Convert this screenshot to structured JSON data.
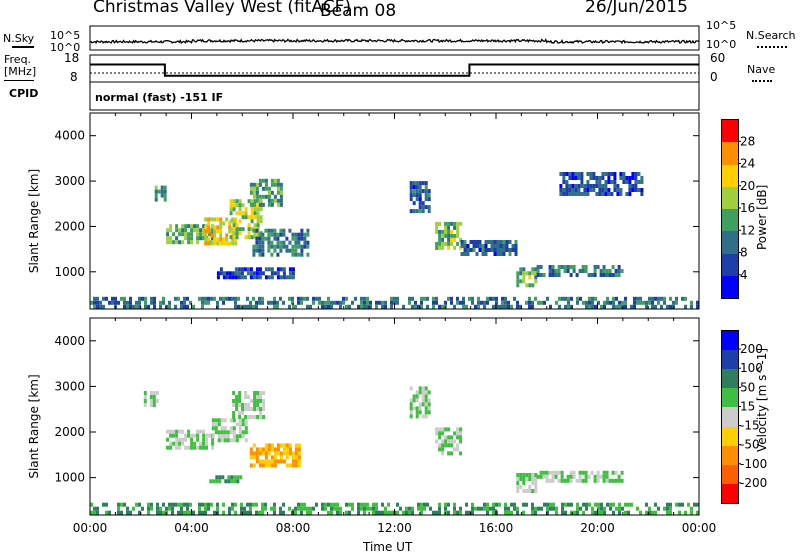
{
  "header": {
    "station": "Christmas Valley West (fitACF)",
    "beam": "Beam 08",
    "date": "26/Jun/2015"
  },
  "panel_labels": {
    "nsky": "N.Sky",
    "nsky_top": "10^5",
    "nsky_bottom": "10^0",
    "nsearch": "N.Search",
    "nsearch_top": "10^5",
    "nsearch_bottom": "10^0",
    "freq": "Freq.",
    "freq_unit": "[MHz]",
    "freq_top": "18",
    "freq_bottom": "8",
    "nave": "Nave",
    "nave_top": "60",
    "nave_bottom": "0",
    "cpid": "CPID",
    "cpid_text": "normal (fast) -151 IF"
  },
  "chart_data": [
    {
      "type": "line",
      "title": "N.Sky / N.Search",
      "x_unit_hours": [
        0,
        24
      ],
      "y_scale": "log",
      "ylim_labels": [
        "10^0",
        "10^5"
      ],
      "series": [
        {
          "name": "N.Sky",
          "style": "solid"
        },
        {
          "name": "N.Search",
          "style": "dotted"
        }
      ]
    },
    {
      "type": "line",
      "title": "Freq. / Nave",
      "ylim_freq_mhz": [
        8,
        18
      ],
      "ylim_nave": [
        0,
        60
      ],
      "series": [
        {
          "name": "Freq.",
          "style": "solid",
          "x": [
            0,
            2.95,
            2.95,
            14.95,
            14.95,
            24
          ],
          "y": [
            14.5,
            14.5,
            10.3,
            10.3,
            14.5,
            14.5
          ]
        },
        {
          "name": "Nave",
          "style": "dotted",
          "x": [
            0,
            24
          ],
          "y": [
            20,
            20
          ]
        }
      ]
    },
    {
      "type": "heatmap",
      "parameter": "Power",
      "ylabel": "Slant Range [km]",
      "xlabel": "Time UT",
      "xlim_hours": [
        0,
        24
      ],
      "ylim_km": [
        180,
        4500
      ],
      "y_ticks": [
        1000,
        2000,
        3000,
        4000
      ],
      "x_tick_labels": [
        "00:00",
        "04:00",
        "08:00",
        "12:00",
        "16:00",
        "20:00",
        "00:00"
      ],
      "colorbar": {
        "label": "Power [dB]",
        "ticks": [
          "4",
          "8",
          "12",
          "16",
          "20",
          "24",
          "28"
        ],
        "colors": [
          "#0000ff",
          "#1f3fa8",
          "#2f6f8a",
          "#3f9f60",
          "#9fcf3f",
          "#ffcf00",
          "#ff8f00",
          "#ff0000"
        ]
      },
      "echo_regions": [
        {
          "t0": 2.55,
          "t1": 2.95,
          "r0": 2550,
          "r1": 2900,
          "level": 12
        },
        {
          "t0": 3.0,
          "t1": 4.8,
          "r0": 1650,
          "r1": 2050,
          "level": 15
        },
        {
          "t0": 4.5,
          "t1": 5.8,
          "r0": 1650,
          "r1": 2200,
          "level": 22
        },
        {
          "t0": 5.5,
          "t1": 6.8,
          "r0": 1800,
          "r1": 2600,
          "level": 18
        },
        {
          "t0": 6.3,
          "t1": 7.5,
          "r0": 2500,
          "r1": 3050,
          "level": 13
        },
        {
          "t0": 6.4,
          "t1": 8.6,
          "r0": 1400,
          "r1": 1950,
          "level": 11
        },
        {
          "t0": 5.0,
          "t1": 8.0,
          "r0": 900,
          "r1": 1100,
          "level": 6
        },
        {
          "t0": 12.6,
          "t1": 13.4,
          "r0": 2300,
          "r1": 3000,
          "level": 8
        },
        {
          "t0": 13.6,
          "t1": 14.6,
          "r0": 1500,
          "r1": 2100,
          "level": 16
        },
        {
          "t0": 14.6,
          "t1": 16.8,
          "r0": 1350,
          "r1": 1700,
          "level": 8
        },
        {
          "t0": 16.8,
          "t1": 17.6,
          "r0": 700,
          "r1": 1100,
          "level": 16
        },
        {
          "t0": 17.6,
          "t1": 21.0,
          "r0": 900,
          "r1": 1150,
          "level": 10
        },
        {
          "t0": 18.5,
          "t1": 21.8,
          "r0": 2700,
          "r1": 3200,
          "level": 7
        },
        {
          "t0": 0.0,
          "t1": 24.0,
          "r0": 200,
          "r1": 450,
          "level": 10
        }
      ]
    },
    {
      "type": "heatmap",
      "parameter": "Velocity",
      "ylabel": "Slant Range [km]",
      "xlabel": "Time UT",
      "xlim_hours": [
        0,
        24
      ],
      "ylim_km": [
        180,
        4500
      ],
      "y_ticks": [
        1000,
        2000,
        3000,
        4000
      ],
      "x_tick_labels": [
        "00:00",
        "04:00",
        "08:00",
        "12:00",
        "16:00",
        "20:00",
        "00:00"
      ],
      "colorbar": {
        "label": "Velocity [m s^-1]",
        "ticks": [
          "200",
          "100",
          "50",
          "15",
          "-15",
          "-50",
          "-100",
          "-200"
        ],
        "colors": [
          "#0000ff",
          "#1f3fa8",
          "#2f7f5f",
          "#3fbf3f",
          "#cccccc",
          "#ffcf00",
          "#ff8f00",
          "#ff5f00",
          "#ff0000"
        ]
      },
      "echo_regions": [
        {
          "t0": 2.0,
          "t1": 2.6,
          "r0": 2600,
          "r1": 2900,
          "v": 0
        },
        {
          "t0": 3.0,
          "t1": 4.8,
          "r0": 1650,
          "r1": 2050,
          "v": 0
        },
        {
          "t0": 4.8,
          "t1": 6.2,
          "r0": 1800,
          "r1": 2300,
          "v": 0
        },
        {
          "t0": 5.6,
          "t1": 6.8,
          "r0": 2300,
          "r1": 2900,
          "v": 0
        },
        {
          "t0": 6.3,
          "t1": 8.3,
          "r0": 1300,
          "r1": 1750,
          "v": -75
        },
        {
          "t0": 4.7,
          "t1": 6.0,
          "r0": 950,
          "r1": 1050,
          "v": 30
        },
        {
          "t0": 12.6,
          "t1": 13.4,
          "r0": 2300,
          "r1": 3000,
          "v": 0
        },
        {
          "t0": 13.6,
          "t1": 14.6,
          "r0": 1500,
          "r1": 2100,
          "v": 0
        },
        {
          "t0": 16.8,
          "t1": 17.6,
          "r0": 700,
          "r1": 1100,
          "v": 0
        },
        {
          "t0": 17.6,
          "t1": 21.0,
          "r0": 900,
          "r1": 1150,
          "v": 0
        },
        {
          "t0": 0.0,
          "t1": 24.0,
          "r0": 200,
          "r1": 450,
          "v": 30
        }
      ]
    }
  ]
}
